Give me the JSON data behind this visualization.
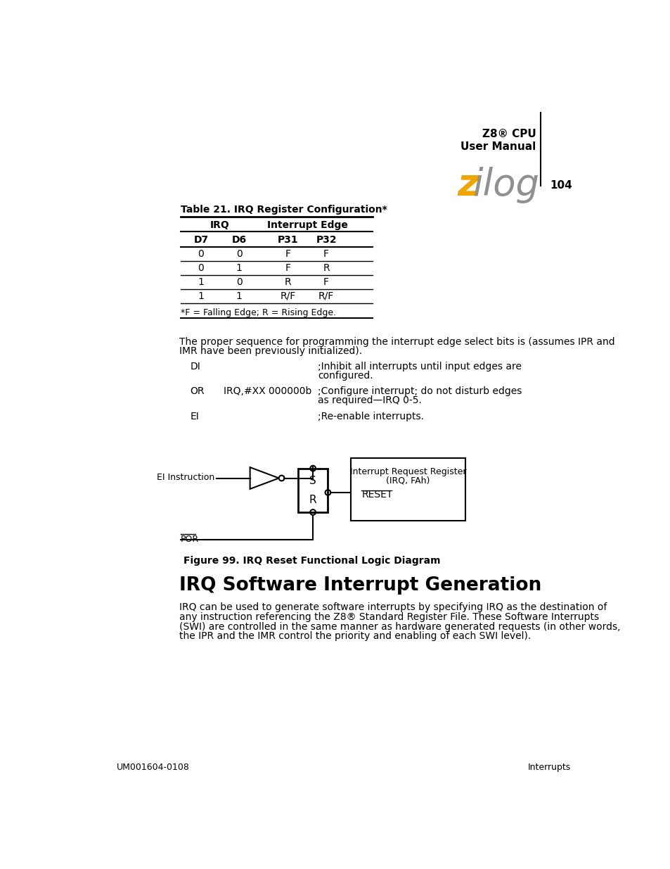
{
  "page_number": "104",
  "header_cpu": "Z8® CPU",
  "header_subtitle": "User Manual",
  "logo_z": "z",
  "logo_ilog": "ilog",
  "table_title": "Table 21. IRQ Register Configuration*",
  "table_headers_row2": [
    "D7",
    "D6",
    "P31",
    "P32"
  ],
  "table_data": [
    [
      "0",
      "0",
      "F",
      "F"
    ],
    [
      "0",
      "1",
      "F",
      "R"
    ],
    [
      "1",
      "0",
      "R",
      "F"
    ],
    [
      "1",
      "1",
      "R/F",
      "R/F"
    ]
  ],
  "table_footnote": "*F = Falling Edge; R = Rising Edge.",
  "body_text1": "The proper sequence for programming the interrupt edge select bits is (assumes IPR and",
  "body_text2": "IMR have been previously initialized).",
  "code_rows": [
    {
      "cmd": "DI",
      "arg": "",
      "comment1": ";Inhibit all interrupts until input edges are",
      "comment2": "configured."
    },
    {
      "cmd": "OR",
      "arg": "IRQ,#XX 000000b",
      "comment1": ";Configure interrupt; do not disturb edges",
      "comment2": "as required—IRQ 0-5."
    },
    {
      "cmd": "EI",
      "arg": "",
      "comment1": ";Re-enable interrupts.",
      "comment2": ""
    }
  ],
  "fig_label_ei": "EI Instruction",
  "fig_box_label1": "Interrupt Request Register",
  "fig_box_label2": "(IRQ, FAh)",
  "fig_reset_label": "RESET",
  "fig_sr_s": "S",
  "fig_sr_r": "R",
  "fig_por_label": "POR",
  "fig_caption": "Figure 99. IRQ Reset Functional Logic Diagram",
  "section_title": "IRQ Software Interrupt Generation",
  "section_body_lines": [
    "IRQ can be used to generate software interrupts by specifying IRQ as the destination of",
    "any instruction referencing the Z8® Standard Register File. These Software Interrupts",
    "(SWI) are controlled in the same manner as hardware generated requests (in other words,",
    "the IPR and the IMR control the priority and enabling of each SWI level)."
  ],
  "footer_left": "UM001604-0108",
  "footer_right": "Interrupts",
  "bg_color": "#ffffff",
  "text_color": "#000000",
  "logo_z_color": "#f0a500",
  "logo_ilog_color": "#909090"
}
